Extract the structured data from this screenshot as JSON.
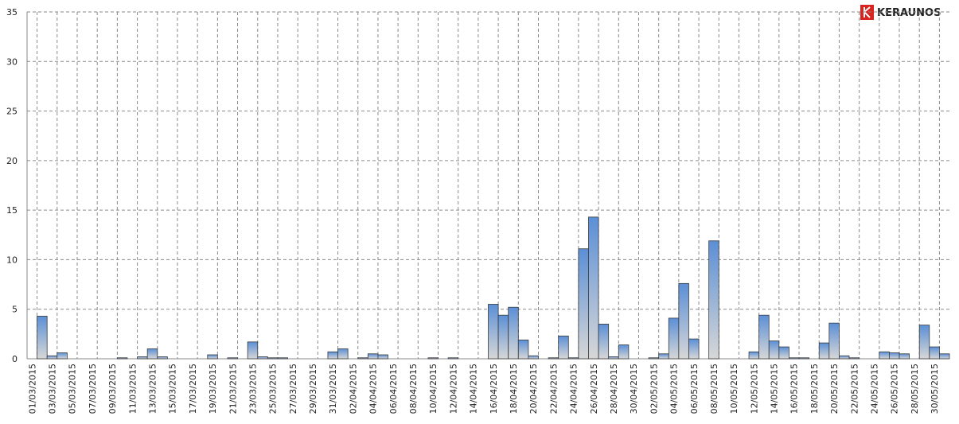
{
  "logo": "KERAUNOS",
  "chart_data": {
    "type": "bar",
    "categories": [
      "01/03/2015",
      null,
      "03/03/2015",
      null,
      "05/03/2015",
      null,
      "07/03/2015",
      null,
      "09/03/2015",
      null,
      "11/03/2015",
      null,
      "13/03/2015",
      null,
      "15/03/2015",
      null,
      "17/03/2015",
      null,
      "19/03/2015",
      null,
      "21/03/2015",
      null,
      "23/03/2015",
      null,
      "25/03/2015",
      null,
      "27/03/2015",
      null,
      "29/03/2015",
      null,
      "31/03/2015",
      null,
      "02/04/2015",
      null,
      "04/04/2015",
      null,
      "06/04/2015",
      null,
      "08/04/2015",
      null,
      "10/04/2015",
      null,
      "12/04/2015",
      null,
      "14/04/2015",
      null,
      "16/04/2015",
      null,
      "18/04/2015",
      null,
      "20/04/2015",
      null,
      "22/04/2015",
      null,
      "24/04/2015",
      null,
      "26/04/2015",
      null,
      "28/04/2015",
      null,
      "30/04/2015",
      null,
      "02/05/2015",
      null,
      "04/05/2015",
      null,
      "06/05/2015",
      null,
      "08/05/2015",
      null,
      "10/05/2015",
      null,
      "12/05/2015",
      null,
      "14/05/2015",
      null,
      "16/05/2015",
      null,
      "18/05/2015",
      null,
      "20/05/2015",
      null,
      "22/05/2015",
      null,
      "24/05/2015",
      null,
      "26/05/2015",
      null,
      "28/05/2015",
      null,
      "30/05/2015",
      null
    ],
    "values": [
      0,
      4.3,
      0.3,
      0.6,
      0,
      0,
      0,
      0,
      0,
      0.1,
      0,
      0.2,
      1.0,
      0.2,
      0,
      0,
      0,
      0,
      0.4,
      0,
      0.1,
      0,
      1.7,
      0.2,
      0.1,
      0.1,
      0,
      0,
      0,
      0,
      0.7,
      1.0,
      0,
      0.1,
      0.5,
      0.4,
      0,
      0,
      0,
      0,
      0.1,
      0,
      0.1,
      0,
      0,
      0,
      5.5,
      4.4,
      5.2,
      1.9,
      0.3,
      0,
      0.1,
      2.3,
      0.1,
      11.1,
      14.3,
      3.5,
      0.2,
      1.4,
      0,
      0,
      0.1,
      0.5,
      4.1,
      7.6,
      2.0,
      0,
      11.9,
      0,
      0,
      0,
      0.7,
      4.4,
      1.8,
      1.2,
      0.1,
      0.1,
      0,
      1.6,
      3.6,
      0.3,
      0.1,
      0,
      0,
      0.7,
      0.6,
      0.5,
      0,
      3.4,
      1.2,
      0.5
    ],
    "color": "#5b8fd6",
    "ylim": [
      0,
      35
    ],
    "yticks": [
      0,
      5,
      10,
      15,
      20,
      25,
      30,
      35
    ],
    "grid": true
  }
}
